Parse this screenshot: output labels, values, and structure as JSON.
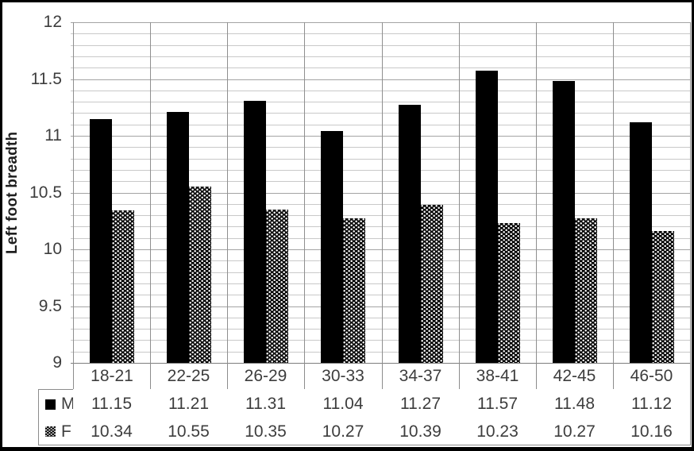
{
  "chart_data": {
    "type": "bar",
    "title": "",
    "xlabel": "",
    "ylabel": "Left foot breadth",
    "categories": [
      "18-21",
      "22-25",
      "26-29",
      "30-33",
      "34-37",
      "38-41",
      "42-45",
      "46-50"
    ],
    "series": [
      {
        "name": "M",
        "swatch": "solid-square-icon",
        "fill": "solid",
        "values": [
          11.15,
          11.21,
          11.31,
          11.04,
          11.27,
          11.57,
          11.48,
          11.12
        ]
      },
      {
        "name": "F",
        "swatch": "checker-square-icon",
        "fill": "checker",
        "values": [
          10.34,
          10.55,
          10.35,
          10.27,
          10.39,
          10.23,
          10.27,
          10.16
        ]
      }
    ],
    "ylim": [
      9,
      12
    ],
    "y_major_step": 0.5,
    "y_minor_step": 0.1,
    "y_tick_labels": [
      "12",
      "11.5",
      "11",
      "10.5",
      "10",
      "9.5",
      "9"
    ],
    "grid": "on",
    "legend_position": "data-table-left",
    "colors": {
      "bar_fill": "#000000",
      "grid_minor": "#c9c9c9",
      "grid_major": "#a4a4a4",
      "category_line": "#8f8f8f",
      "table_border": "#8c8c8c",
      "tick_text": "#3d3d3d",
      "frame": "#000000"
    },
    "table_values_display": {
      "M": [
        "11.15",
        "11.21",
        "11.31",
        "11.04",
        "11.27",
        "11.57",
        "11.48",
        "11.12"
      ],
      "F": [
        "10.34",
        "10.55",
        "10.35",
        "10.27",
        "10.39",
        "10.23",
        "10.27",
        "10.16"
      ]
    }
  }
}
